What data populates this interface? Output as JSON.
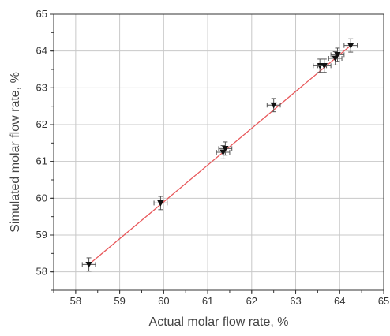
{
  "chart_data": {
    "type": "scatter",
    "title": "",
    "xlabel": "Actual molar flow rate, %",
    "ylabel": "Simulated molar flow rate, %",
    "xlim": [
      57.5,
      65
    ],
    "ylim": [
      57.5,
      65
    ],
    "xticks": [
      58,
      59,
      60,
      61,
      62,
      63,
      64,
      65
    ],
    "yticks": [
      58,
      59,
      60,
      61,
      62,
      63,
      64,
      65
    ],
    "grid": true,
    "legend": "none",
    "series": [
      {
        "marker": "triangle-down",
        "color": "#111111",
        "points": [
          {
            "x": 58.3,
            "y": 58.2
          },
          {
            "x": 59.93,
            "y": 59.87
          },
          {
            "x": 61.35,
            "y": 61.25
          },
          {
            "x": 61.4,
            "y": 61.35
          },
          {
            "x": 62.5,
            "y": 62.53
          },
          {
            "x": 63.55,
            "y": 63.6
          },
          {
            "x": 63.65,
            "y": 63.6
          },
          {
            "x": 63.9,
            "y": 63.8
          },
          {
            "x": 63.95,
            "y": 63.9
          },
          {
            "x": 64.25,
            "y": 64.15
          }
        ],
        "x_error": 0.15,
        "y_error": 0.18
      }
    ],
    "fit_line": {
      "color": "#e8575a",
      "from": [
        58.3,
        58.2
      ],
      "to": [
        64.25,
        64.15
      ]
    },
    "colors": {
      "grid": "#c8c8c8",
      "axis": "#333333",
      "errorbar": "#555555"
    }
  }
}
